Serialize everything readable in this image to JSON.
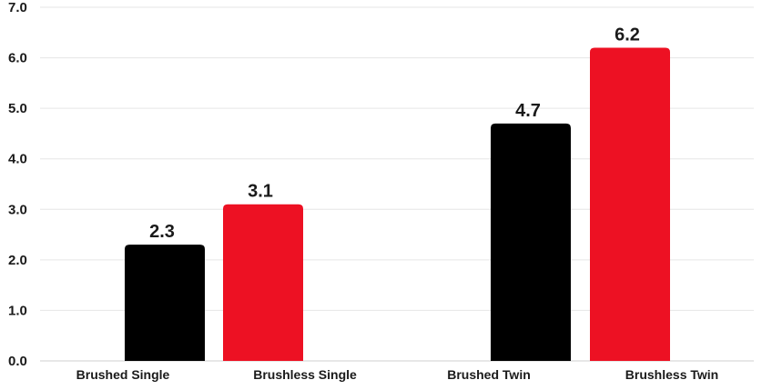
{
  "chart_data": {
    "type": "bar",
    "categories": [
      "Brushed Single",
      "Brushless Single",
      "Brushed Twin",
      "Brushless Twin"
    ],
    "values": [
      2.3,
      3.1,
      4.7,
      6.2
    ],
    "value_labels": [
      "2.3",
      "3.1",
      "4.7",
      "6.2"
    ],
    "bar_colors": [
      "#000000",
      "#ed1123",
      "#000000",
      "#ed1123"
    ],
    "title": "",
    "xlabel": "",
    "ylabel": "",
    "ylim": [
      0,
      7
    ],
    "yticks": [
      "0.0",
      "1.0",
      "2.0",
      "3.0",
      "4.0",
      "5.0",
      "6.0",
      "7.0"
    ],
    "grid": true,
    "legend": "none"
  }
}
